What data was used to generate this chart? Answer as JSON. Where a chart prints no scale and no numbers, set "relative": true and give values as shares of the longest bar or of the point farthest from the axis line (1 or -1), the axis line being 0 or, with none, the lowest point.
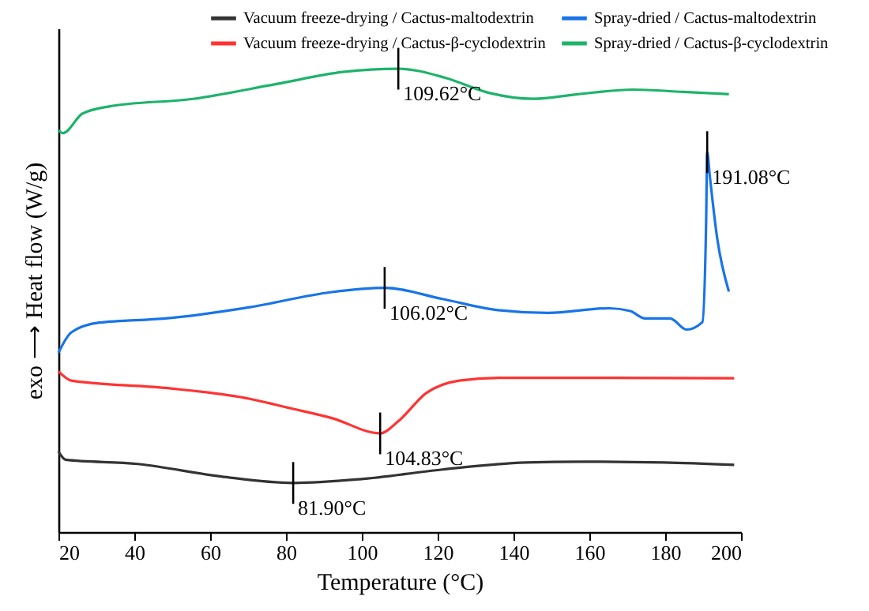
{
  "chart_data": {
    "type": "line",
    "relative": true,
    "xlabel": "Temperature (°C)",
    "ylabel": "exo ⟶ Heat flow (W/g)",
    "xlim": [
      20,
      200
    ],
    "xticks": [
      20,
      40,
      60,
      80,
      100,
      120,
      140,
      160,
      180,
      200
    ],
    "grid": false,
    "legend": "top right",
    "marker": "none",
    "line_style": "solid",
    "series": [
      {
        "name": "Vacuum freeze-drying / Cactus-maltodextrin",
        "color": "#333333",
        "x": [
          20,
          21.9,
          40.9,
          62.9,
          81.9,
          99.4,
          121.3,
          143.2,
          157.9,
          179.8,
          198.2
        ],
        "values": [
          0.174,
          0.156,
          0.147,
          0.12,
          0.106,
          0.114,
          0.135,
          0.15,
          0.152,
          0.15,
          0.145
        ]
      },
      {
        "name": "Spray-dried / Cactus-maltodextrin",
        "color": "#1874e8",
        "x": [
          20,
          23.4,
          30.7,
          48.2,
          70.2,
          92.1,
          106.02,
          121.3,
          135.9,
          149.1,
          165.2,
          170.8,
          174.7,
          181.3,
          185.6,
          189.8,
          190.8,
          191.08,
          191.8,
          193.7,
          196.8
        ],
        "values": [
          0.387,
          0.431,
          0.452,
          0.461,
          0.485,
          0.518,
          0.527,
          0.503,
          0.479,
          0.473,
          0.483,
          0.477,
          0.461,
          0.461,
          0.437,
          0.453,
          0.67,
          0.82,
          0.766,
          0.635,
          0.519
        ]
      },
      {
        "name": "Vacuum freeze-drying / Cactus-β-cyclodextrin",
        "color": "#ff3333",
        "x": [
          20,
          23.4,
          48.2,
          70.2,
          81.3,
          92.1,
          104.83,
          109.7,
          117,
          125.7,
          136,
          165,
          198.2
        ],
        "values": [
          0.347,
          0.327,
          0.311,
          0.288,
          0.267,
          0.246,
          0.213,
          0.24,
          0.3,
          0.327,
          0.333,
          0.333,
          0.332
        ]
      },
      {
        "name": "Spray-dried / Cactus-β-cyclodextrin",
        "color": "#1db36b",
        "x": [
          20,
          21.2,
          26.3,
          33.6,
          55.5,
          77.5,
          95,
          109.62,
          121.8,
          133.5,
          145.2,
          156.9,
          171.5,
          184.7,
          196.8
        ],
        "values": [
          0.867,
          0.861,
          0.903,
          0.919,
          0.935,
          0.967,
          0.993,
          1,
          0.981,
          0.948,
          0.935,
          0.945,
          0.955,
          0.95,
          0.945
        ]
      }
    ],
    "annotations": [
      {
        "text": "109.62°C",
        "x": 109.62,
        "y": 1
      },
      {
        "text": "191.08°C",
        "x": 191.08,
        "y": 0.82
      },
      {
        "text": "106.02°C",
        "x": 106.02,
        "y": 0.527
      },
      {
        "text": "104.83°C",
        "x": 104.83,
        "y": 0.213
      },
      {
        "text": "81.90°C",
        "x": 81.9,
        "y": 0.106
      }
    ]
  }
}
